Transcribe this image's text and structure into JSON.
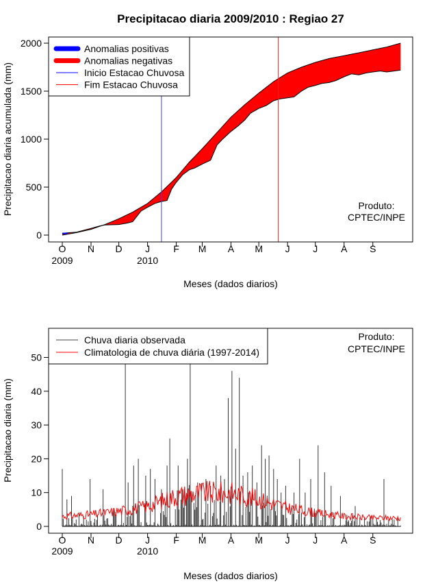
{
  "chart_data": [
    {
      "type": "area",
      "title": "Precipitacao diaria 2009/2010 : Regiao 27",
      "xlabel": "Meses (dados diarios)",
      "ylabel": "Precipitacao diaria acumulada (mm)",
      "ylim": [
        0,
        2000
      ],
      "yticks": [
        0,
        500,
        1000,
        1500,
        2000
      ],
      "xlim_days": [
        0,
        365
      ],
      "month_ticks": [
        {
          "label": "O",
          "day": 0
        },
        {
          "label": "N",
          "day": 31
        },
        {
          "label": "D",
          "day": 61
        },
        {
          "label": "J",
          "day": 92
        },
        {
          "label": "F",
          "day": 123
        },
        {
          "label": "M",
          "day": 151
        },
        {
          "label": "A",
          "day": 182
        },
        {
          "label": "M",
          "day": 212
        },
        {
          "label": "J",
          "day": 243
        },
        {
          "label": "J",
          "day": 273
        },
        {
          "label": "A",
          "day": 304
        },
        {
          "label": "S",
          "day": 335
        }
      ],
      "year_labels": [
        {
          "label": "2009",
          "day": 0
        },
        {
          "label": "2010",
          "day": 92
        }
      ],
      "legend": {
        "position": "top-left",
        "entries": [
          {
            "label": "Anomalias positivas",
            "color": "#0000ff",
            "style": "thick"
          },
          {
            "label": "Anomalias negativas",
            "color": "#ff0000",
            "style": "thick"
          },
          {
            "label": "Inicio Estacao Chuvosa",
            "color": "#0000ff",
            "style": "thin"
          },
          {
            "label": "Fim Estacao Chuvosa",
            "color": "#ff0000",
            "style": "thin"
          }
        ]
      },
      "annotation": [
        "Produto:",
        "CPTEC/INPE"
      ],
      "season_start_day": 107,
      "season_end_day": 233,
      "series": [
        {
          "name": "Climatologia acumulada",
          "days": [
            0,
            15,
            31,
            46,
            61,
            76,
            92,
            107,
            123,
            137,
            151,
            167,
            182,
            197,
            212,
            228,
            243,
            258,
            273,
            288,
            304,
            320,
            335,
            350,
            365
          ],
          "values": [
            0,
            25,
            60,
            110,
            170,
            240,
            330,
            450,
            600,
            760,
            900,
            1070,
            1230,
            1360,
            1480,
            1600,
            1690,
            1750,
            1800,
            1840,
            1870,
            1900,
            1930,
            1960,
            2000
          ]
        },
        {
          "name": "Observado acumulado",
          "days": [
            0,
            15,
            31,
            40,
            46,
            61,
            70,
            76,
            85,
            92,
            100,
            107,
            113,
            118,
            123,
            130,
            137,
            143,
            151,
            160,
            167,
            173,
            182,
            190,
            197,
            203,
            212,
            220,
            228,
            235,
            243,
            250,
            258,
            265,
            273,
            280,
            288,
            295,
            304,
            312,
            320,
            328,
            335,
            343,
            350,
            358,
            365
          ],
          "values": [
            20,
            30,
            70,
            95,
            105,
            110,
            125,
            140,
            250,
            290,
            330,
            350,
            360,
            480,
            550,
            630,
            680,
            700,
            740,
            780,
            940,
            1000,
            1080,
            1140,
            1200,
            1270,
            1320,
            1350,
            1400,
            1420,
            1430,
            1440,
            1500,
            1540,
            1560,
            1580,
            1590,
            1610,
            1650,
            1680,
            1670,
            1690,
            1700,
            1710,
            1700,
            1710,
            1720
          ]
        }
      ]
    },
    {
      "type": "bar",
      "xlabel": "Meses (dados diarios)",
      "ylabel": "Precipitacao diaria (mm)",
      "ylim": [
        0,
        60
      ],
      "yticks": [
        0,
        10,
        20,
        30,
        40,
        50
      ],
      "xlim_days": [
        0,
        365
      ],
      "legend": {
        "position": "top-left",
        "entries": [
          {
            "label": "Chuva diaria observada",
            "color": "#444444",
            "style": "thin"
          },
          {
            "label": "Climatologia de chuva diária (1997-2014)",
            "color": "#ff0000",
            "style": "thin"
          }
        ]
      },
      "annotation": [
        "Produto:",
        "CPTEC/INPE"
      ],
      "observed_peaks": [
        {
          "day": 0,
          "value": 17
        },
        {
          "day": 5,
          "value": 8
        },
        {
          "day": 10,
          "value": 9
        },
        {
          "day": 30,
          "value": 14
        },
        {
          "day": 44,
          "value": 11
        },
        {
          "day": 66,
          "value": 1
        },
        {
          "day": 68,
          "value": 49
        },
        {
          "day": 71,
          "value": 13
        },
        {
          "day": 77,
          "value": 18
        },
        {
          "day": 82,
          "value": 20
        },
        {
          "day": 90,
          "value": 15
        },
        {
          "day": 95,
          "value": 17
        },
        {
          "day": 100,
          "value": 14
        },
        {
          "day": 107,
          "value": 11
        },
        {
          "day": 113,
          "value": 18
        },
        {
          "day": 116,
          "value": 26
        },
        {
          "day": 125,
          "value": 18
        },
        {
          "day": 130,
          "value": 11
        },
        {
          "day": 135,
          "value": 20
        },
        {
          "day": 138,
          "value": 49
        },
        {
          "day": 146,
          "value": 13
        },
        {
          "day": 155,
          "value": 14
        },
        {
          "day": 160,
          "value": 12
        },
        {
          "day": 166,
          "value": 18
        },
        {
          "day": 171,
          "value": 15
        },
        {
          "day": 175,
          "value": 14
        },
        {
          "day": 179,
          "value": 38
        },
        {
          "day": 183,
          "value": 46
        },
        {
          "day": 187,
          "value": 23
        },
        {
          "day": 191,
          "value": 44
        },
        {
          "day": 195,
          "value": 15
        },
        {
          "day": 200,
          "value": 16
        },
        {
          "day": 205,
          "value": 18
        },
        {
          "day": 210,
          "value": 13
        },
        {
          "day": 215,
          "value": 24
        },
        {
          "day": 219,
          "value": 20
        },
        {
          "day": 223,
          "value": 21
        },
        {
          "day": 228,
          "value": 17
        },
        {
          "day": 232,
          "value": 14
        },
        {
          "day": 236,
          "value": 10
        },
        {
          "day": 241,
          "value": 12
        },
        {
          "day": 250,
          "value": 10
        },
        {
          "day": 256,
          "value": 20
        },
        {
          "day": 262,
          "value": 10
        },
        {
          "day": 268,
          "value": 14
        },
        {
          "day": 276,
          "value": 24
        },
        {
          "day": 283,
          "value": 16
        },
        {
          "day": 290,
          "value": 12
        },
        {
          "day": 300,
          "value": 9
        },
        {
          "day": 316,
          "value": 6
        },
        {
          "day": 333,
          "value": 3
        },
        {
          "day": 347,
          "value": 14
        },
        {
          "day": 358,
          "value": 2
        }
      ],
      "climatology": {
        "days": [
          0,
          31,
          61,
          92,
          123,
          151,
          182,
          212,
          243,
          273,
          304,
          335,
          365
        ],
        "values": [
          3,
          3.5,
          4.5,
          6,
          9,
          10,
          10,
          8,
          5.5,
          4,
          3,
          2.5,
          2.5
        ]
      }
    }
  ]
}
